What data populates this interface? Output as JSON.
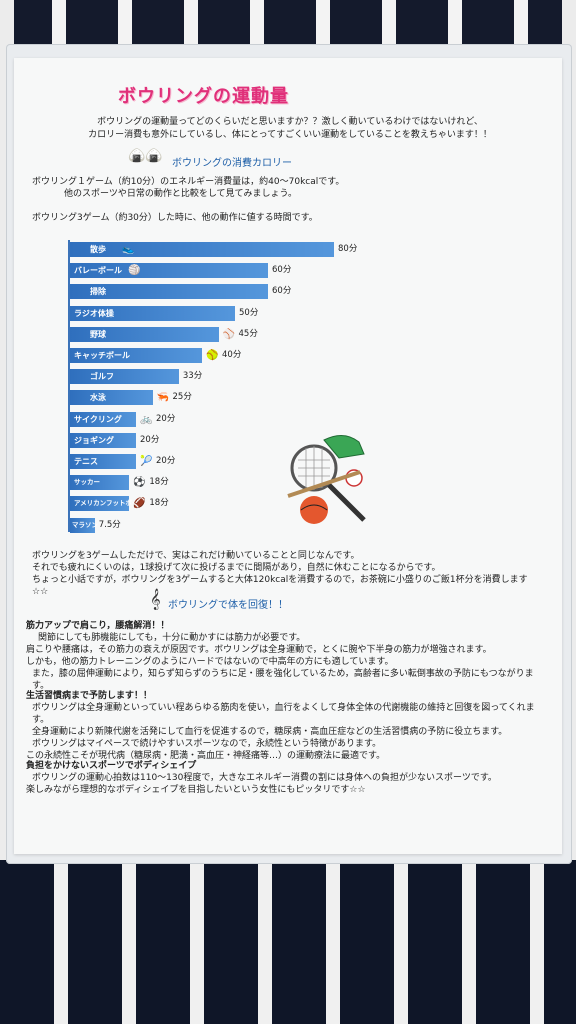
{
  "poster": {
    "title": "ボウリングの運動量",
    "intro_lines": [
      "ボウリングの運動量ってどのくらいだと思いますか？？激しく動いているわけではないけれど、",
      "カロリー消費も意外にしているし、体にとってすごくいい運動をしていることを教えちゃいます！！"
    ],
    "section1_title": "ボウリングの消費カロリー",
    "calorie_lines": [
      "ボウリング１ゲーム（約10分）のエネルギー消費量は，約40～70kcalです。",
      "他のスポーツや日常の動作と比較をして見てみましょう。"
    ],
    "chart_caption": "ボウリング3ゲーム（約30分）した時に、他の動作に値する時間です。",
    "after_chart_lines": [
      "ボウリングを3ゲームしただけで、実はこれだけ動いていることと同じなんです。",
      "それでも疲れにくいのは，1球投げて次に投げるまでに間隔があり，自然に休むことになるからです。",
      "ちょっと小話ですが，ボウリングを3ゲームすると大体120kcalを消費するので，お茶碗に小盛りのご飯1杯分を消費します☆☆"
    ],
    "section2_title": "ボウリングで体を回復！！",
    "muscle_lines": [
      "筋力アップで肩こり，腰痛解消！！",
      "関節にしても肺機能にしても，十分に動かすには筋力が必要です。",
      "肩こりや腰痛は，その筋力の衰えが原因です。ボウリングは全身運動で，とくに腕や下半身の筋力が増強されます。",
      "しかも，他の筋力トレーニングのようにハードではないので中高年の方にも適しています。",
      "また，膝の屈伸運動により，知らず知らずのうちに足・腰を強化しているため，高齢者に多い転倒事故の予防にもつながります。"
    ],
    "lifestyle_lines": [
      "生活習慣病まで予防します！！",
      "ボウリングは全身運動といっていい程あらゆる筋肉を使い，血行をよくして身体全体の代謝機能の維持と回復を図ってくれます。",
      "全身運動により新陳代謝を活発にして血行を促進するので，糖尿病・高血圧症などの生活習慣病の予防に役立ちます。",
      "ボウリングはマイペースで続けやすいスポーツなので，永続性という特徴があります。",
      "この永続性こそが現代病（糖尿病・肥満・高血圧・神経痛等…）の運動療法に最適です。"
    ],
    "shape_lines": [
      "負担をかけないスポーツでボディシェイプ",
      "ボウリングの運動心拍数は110～130程度で，大きなエネルギー消費の割には身体への負担が少ないスポーツです。",
      "楽しみながら理想的なボディシェイプを目指したいという女性にもピッタリです☆☆"
    ]
  },
  "chart_data": {
    "type": "bar",
    "orientation": "horizontal",
    "categories": [
      "散歩",
      "バレーボール",
      "掃除",
      "ラジオ体操",
      "野球",
      "キャッチボール",
      "ゴルフ",
      "水泳",
      "サイクリング",
      "ジョギング",
      "テニス",
      "サッカー",
      "アメリカンフットボール",
      "マラソン"
    ],
    "values": [
      80,
      60,
      60,
      50,
      45,
      40,
      33,
      25,
      20,
      20,
      20,
      18,
      18,
      7.5
    ],
    "value_labels": [
      "80分",
      "60分",
      "60分",
      "50分",
      "45分",
      "40分",
      "33分",
      "25分",
      "20分",
      "20分",
      "20分",
      "18分",
      "18分",
      "7.5分"
    ],
    "icons": [
      "shoe",
      "volleyball",
      "",
      "",
      "baseball-bat",
      "baseball-glove",
      "",
      "swimmer",
      "bicycle",
      "",
      "tennis-ball",
      "soccer-ball",
      "football-helmet",
      ""
    ],
    "xlim": [
      0,
      80
    ],
    "colors": {
      "bar": "#2f6fbd",
      "bar_light": "#5597dc",
      "title": "#e0307a",
      "heading": "#1e5fa8"
    }
  }
}
